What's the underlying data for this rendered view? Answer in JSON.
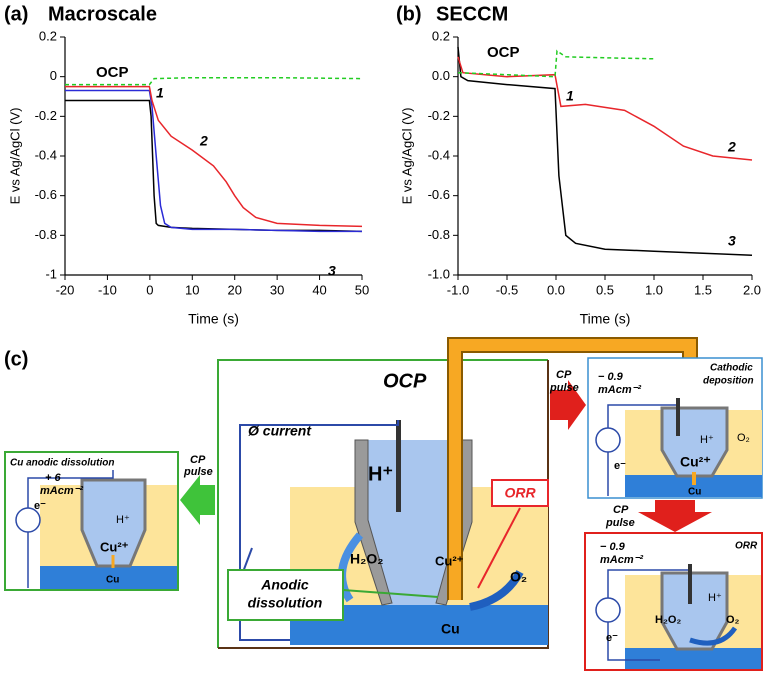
{
  "chart_data": [
    {
      "type": "line",
      "panel": "(a)",
      "title": "Macroscale",
      "x_label": "Time (s)",
      "y_label": "E vs Ag/AgCl (V)",
      "xlim": [
        -20,
        50
      ],
      "xticks": [
        -20,
        -10,
        0,
        10,
        20,
        30,
        40,
        50
      ],
      "ylim": [
        -1,
        0.2
      ],
      "yticks": [
        0.2,
        0,
        -0.2,
        -0.4,
        -0.6,
        -0.8,
        -1
      ],
      "grid": false,
      "annotations": [
        "OCP",
        "1",
        "2",
        "3"
      ],
      "series": [
        {
          "color": "#000000",
          "x": [
            -20,
            -0.1,
            0.3,
            1,
            1.5,
            2,
            5,
            10,
            20,
            30,
            40,
            50
          ],
          "values": [
            -0.12,
            -0.12,
            -0.2,
            -0.6,
            -0.74,
            -0.75,
            -0.76,
            -0.765,
            -0.77,
            -0.775,
            -0.775,
            -0.78
          ]
        },
        {
          "color": "#2b2bd6",
          "x": [
            -20,
            -0.1,
            0.5,
            1.5,
            2.5,
            3.5,
            5,
            10,
            20,
            30,
            40,
            50
          ],
          "values": [
            -0.07,
            -0.07,
            -0.15,
            -0.4,
            -0.65,
            -0.74,
            -0.76,
            -0.77,
            -0.77,
            -0.775,
            -0.78,
            -0.78
          ]
        },
        {
          "color": "#e8262b",
          "x": [
            -20,
            -0.1,
            0.5,
            2,
            5,
            10,
            15,
            18,
            20,
            22,
            25,
            30,
            40,
            50
          ],
          "values": [
            -0.05,
            -0.05,
            -0.12,
            -0.22,
            -0.3,
            -0.37,
            -0.45,
            -0.53,
            -0.6,
            -0.66,
            -0.71,
            -0.74,
            -0.75,
            -0.755
          ]
        },
        {
          "color": "#22cc22",
          "style": "dashed",
          "x": [
            -20,
            -0.1,
            1,
            10,
            30,
            50
          ],
          "values": [
            -0.04,
            -0.04,
            -0.01,
            -0.005,
            -0.005,
            -0.01
          ]
        }
      ]
    },
    {
      "type": "line",
      "panel": "(b)",
      "title": "SECCM",
      "x_label": "Time (s)",
      "y_label": "E vs Ag/AgCl (V)",
      "xlim": [
        -1,
        2
      ],
      "xticks": [
        {
          "value": -1,
          "label": "-1.0"
        },
        -0.5,
        {
          "value": 0,
          "label": "0.0"
        },
        0.5,
        {
          "value": 1,
          "label": "1.0"
        },
        1.5,
        {
          "value": 2,
          "label": "2.0"
        }
      ],
      "ylim": [
        -1,
        0.2
      ],
      "yticks": [
        0.2,
        {
          "value": 0,
          "label": "0.0"
        },
        -0.2,
        -0.4,
        -0.6,
        -0.8,
        {
          "value": -1,
          "label": "-1.0"
        }
      ],
      "grid": false,
      "annotations": [
        "OCP",
        "1",
        "2",
        "3"
      ],
      "series": [
        {
          "color": "#000000",
          "x": [
            -1,
            -0.97,
            -0.9,
            -0.5,
            -0.01,
            0.03,
            0.1,
            0.2,
            0.5,
            1,
            1.5,
            2
          ],
          "values": [
            0.15,
            0.0,
            -0.02,
            -0.04,
            -0.06,
            -0.5,
            -0.8,
            -0.84,
            -0.87,
            -0.88,
            -0.89,
            -0.9
          ]
        },
        {
          "color": "#e8262b",
          "x": [
            -1,
            -0.95,
            -0.5,
            -0.01,
            0.05,
            0.3,
            0.7,
            1,
            1.3,
            1.6,
            2
          ],
          "values": [
            0.1,
            0.02,
            0.0,
            0.01,
            -0.15,
            -0.14,
            -0.17,
            -0.25,
            -0.35,
            -0.4,
            -0.42
          ]
        },
        {
          "color": "#22cc22",
          "style": "dashed",
          "x": [
            -1,
            -0.5,
            -0.01,
            0.01,
            0.1,
            0.5,
            1
          ],
          "values": [
            0.02,
            0.01,
            0.0,
            0.13,
            0.1,
            0.095,
            0.09
          ]
        }
      ]
    }
  ],
  "diagram": {
    "label": "(c)",
    "center": {
      "title": "OCP",
      "current": "Ø current",
      "proton": "H⁺",
      "peroxide": "H₂O₂",
      "copper_ion": "Cu²⁺",
      "orr": "ORR",
      "oxygen": "O₂",
      "anodic": [
        "Anodic",
        "dissolution"
      ],
      "copper": "Cu"
    },
    "left": {
      "title": "Cu anodic dissolution",
      "current": [
        "+ 6",
        "mAcm⁻²"
      ],
      "electron": "e⁻",
      "proton": "H⁺",
      "copper_ion": "Cu²⁺",
      "copper": "Cu",
      "pulse": [
        "CP",
        "pulse"
      ]
    },
    "top_right": {
      "pulse": [
        "CP",
        "pulse"
      ],
      "current": [
        "− 0.9",
        "mAcm⁻²"
      ],
      "title": [
        "Cathodic",
        "deposition"
      ],
      "proton": "H⁺",
      "copper_ion": "Cu²⁺",
      "oxygen": "O₂",
      "electron": "e⁻",
      "copper": "Cu"
    },
    "bottom_right": {
      "pulse": [
        "CP",
        "pulse"
      ],
      "title": "ORR",
      "current": [
        "− 0.9",
        "mAcm⁻²"
      ],
      "proton": "H⁺",
      "peroxide": "H₂O₂",
      "oxygen": "O₂",
      "electron": "e⁻"
    }
  }
}
